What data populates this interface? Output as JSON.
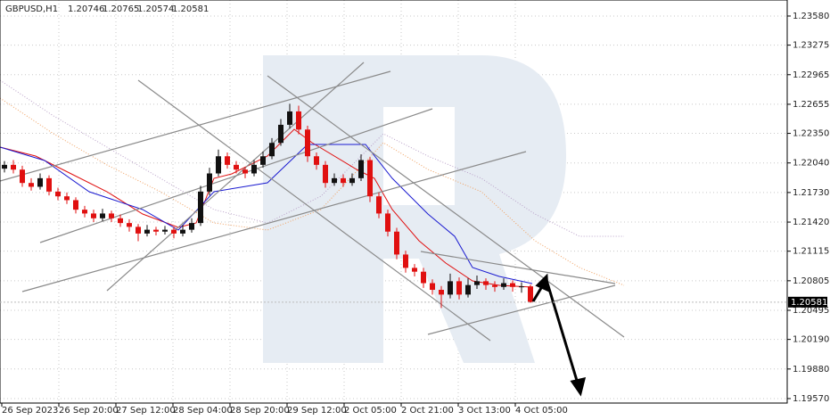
{
  "chart_data": {
    "type": "candlestick",
    "symbol": "GBPUSD,H1",
    "up_color": "#111111",
    "down_color": "#e01010",
    "grid": true,
    "ylim": [
      1.19523,
      1.23748
    ],
    "yticks": [
      {
        "value": 1.2358,
        "label": "1.23580"
      },
      1.23275,
      1.22965,
      1.22655,
      {
        "value": 1.2235,
        "label": "1.22350"
      },
      {
        "value": 1.2204,
        "label": "1.22040"
      },
      {
        "value": 1.2173,
        "label": "1.21730"
      },
      {
        "value": 1.2142,
        "label": "1.21420"
      },
      1.21115,
      1.20805,
      1.20495,
      {
        "value": 1.2019,
        "label": "1.20190"
      },
      {
        "value": 1.1988,
        "label": "1.19880"
      },
      {
        "value": 1.1957,
        "label": "1.19570"
      }
    ],
    "x_labels": [
      "26 Sep 2023",
      "26 Sep 20:00",
      "27 Sep 12:00",
      "28 Sep 04:00",
      "28 Sep 20:00",
      "29 Sep 12:00",
      "2 Oct 05:00",
      "2 Oct 21:00",
      "3 Oct 13:00",
      "4 Oct 05:00"
    ],
    "candles": [
      [
        1.2198,
        1.2206,
        1.2194,
        1.2202
      ],
      [
        1.2202,
        1.2207,
        1.2193,
        1.2197
      ],
      [
        1.2197,
        1.2201,
        1.2179,
        1.2183
      ],
      [
        1.2183,
        1.2188,
        1.2175,
        1.2179
      ],
      [
        1.2179,
        1.2193,
        1.2176,
        1.2188
      ],
      [
        1.2188,
        1.2191,
        1.217,
        1.2174
      ],
      [
        1.2174,
        1.2178,
        1.2165,
        1.2169
      ],
      [
        1.2169,
        1.2173,
        1.2161,
        1.2165
      ],
      [
        1.2165,
        1.2168,
        1.2151,
        1.2155
      ],
      [
        1.2155,
        1.2159,
        1.2147,
        1.2151
      ],
      [
        1.2151,
        1.2155,
        1.2142,
        1.2146
      ],
      [
        1.2146,
        1.2156,
        1.2143,
        1.2151
      ],
      [
        1.2151,
        1.2154,
        1.2142,
        1.2146
      ],
      [
        1.2146,
        1.215,
        1.2137,
        1.2141
      ],
      [
        1.2141,
        1.2145,
        1.2132,
        1.2137
      ],
      [
        1.2137,
        1.214,
        1.2122,
        1.213
      ],
      [
        1.213,
        1.2139,
        1.2127,
        1.2134
      ],
      [
        1.2134,
        1.2137,
        1.2128,
        1.2132
      ],
      [
        1.2132,
        1.2138,
        1.2129,
        1.2134
      ],
      [
        1.2134,
        1.2137,
        1.2125,
        1.213
      ],
      [
        1.213,
        1.2139,
        1.2127,
        1.2134
      ],
      [
        1.2134,
        1.2146,
        1.2131,
        1.2141
      ],
      [
        1.2141,
        1.218,
        1.2138,
        1.2174
      ],
      [
        1.2174,
        1.2199,
        1.217,
        1.2193
      ],
      [
        1.2193,
        1.2218,
        1.219,
        1.2211
      ],
      [
        1.2211,
        1.2215,
        1.2198,
        1.2202
      ],
      [
        1.2202,
        1.2206,
        1.2193,
        1.2197
      ],
      [
        1.2197,
        1.22,
        1.2188,
        1.2193
      ],
      [
        1.2193,
        1.2207,
        1.219,
        1.2202
      ],
      [
        1.2202,
        1.2216,
        1.2199,
        1.2211
      ],
      [
        1.2211,
        1.223,
        1.2208,
        1.2225
      ],
      [
        1.2225,
        1.225,
        1.2222,
        1.2244
      ],
      [
        1.2244,
        1.2266,
        1.224,
        1.2258
      ],
      [
        1.2258,
        1.2264,
        1.2234,
        1.2239
      ],
      [
        1.2239,
        1.2243,
        1.2205,
        1.2211
      ],
      [
        1.2211,
        1.2215,
        1.2197,
        1.2202
      ],
      [
        1.2202,
        1.2206,
        1.2178,
        1.2183
      ],
      [
        1.2183,
        1.2193,
        1.218,
        1.2188
      ],
      [
        1.2188,
        1.2192,
        1.2179,
        1.2183
      ],
      [
        1.2183,
        1.2193,
        1.218,
        1.2188
      ],
      [
        1.2188,
        1.2213,
        1.2185,
        1.2207
      ],
      [
        1.2207,
        1.221,
        1.2163,
        1.2169
      ],
      [
        1.2169,
        1.2173,
        1.2146,
        1.2151
      ],
      [
        1.2151,
        1.2155,
        1.2127,
        1.2132
      ],
      [
        1.2132,
        1.2136,
        1.2103,
        1.2108
      ],
      [
        1.2108,
        1.2112,
        1.2089,
        1.2094
      ],
      [
        1.2094,
        1.2098,
        1.2085,
        1.209
      ],
      [
        1.209,
        1.2094,
        1.2073,
        1.2078
      ],
      [
        1.2078,
        1.2082,
        1.2066,
        1.2071
      ],
      [
        1.2071,
        1.2075,
        1.2052,
        1.2066
      ],
      [
        1.2066,
        1.2088,
        1.2062,
        1.208
      ],
      [
        1.208,
        1.2084,
        1.2061,
        1.2066
      ],
      [
        1.2066,
        1.2083,
        1.2063,
        1.2076
      ],
      [
        1.2076,
        1.2086,
        1.2072,
        1.208
      ],
      [
        1.208,
        1.2083,
        1.2071,
        1.2076
      ],
      [
        1.2076,
        1.208,
        1.2069,
        1.2074
      ],
      [
        1.2074,
        1.2083,
        1.2071,
        1.2078
      ],
      [
        1.2078,
        1.2081,
        1.2069,
        1.2074
      ],
      [
        1.2074,
        1.2079,
        1.2068,
        1.20746
      ],
      [
        1.20746,
        1.20765,
        1.20574,
        1.20581
      ]
    ]
  }
}
